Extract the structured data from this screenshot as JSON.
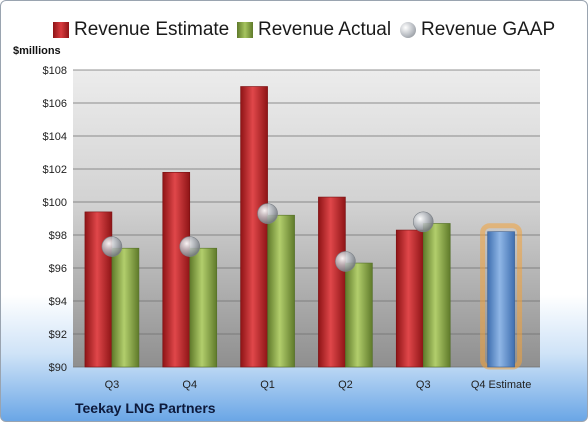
{
  "legend": {
    "estimate_label": "Revenue Estimate",
    "actual_label": "Revenue Actual",
    "gaap_label": "Revenue GAAP"
  },
  "unit_label": "$millions",
  "company": "Teekay LNG Partners",
  "colors": {
    "estimate": "#c0282b",
    "actual": "#8fae4a",
    "gaap": "#b8bcc2",
    "forecast": "#6b9bd6",
    "forecast_glow": "#f2a23a"
  },
  "chart_data": {
    "type": "bar",
    "categories": [
      "Q3",
      "Q4",
      "Q1",
      "Q2",
      "Q3",
      "Q4 Estimate"
    ],
    "series": [
      {
        "name": "Revenue Estimate",
        "values": [
          99.4,
          101.8,
          107.0,
          100.3,
          98.3,
          98.2
        ]
      },
      {
        "name": "Revenue Actual",
        "values": [
          97.2,
          97.2,
          99.2,
          96.3,
          98.7,
          null
        ]
      },
      {
        "name": "Revenue GAAP",
        "values": [
          97.3,
          97.3,
          99.3,
          96.4,
          98.8,
          null
        ]
      }
    ],
    "ylabel": "$millions",
    "ylim": [
      90,
      108
    ],
    "yticks": [
      "$90",
      "$92",
      "$94",
      "$96",
      "$98",
      "$100",
      "$102",
      "$104",
      "$106",
      "$108"
    ],
    "grid": true,
    "legend_position": "top"
  }
}
